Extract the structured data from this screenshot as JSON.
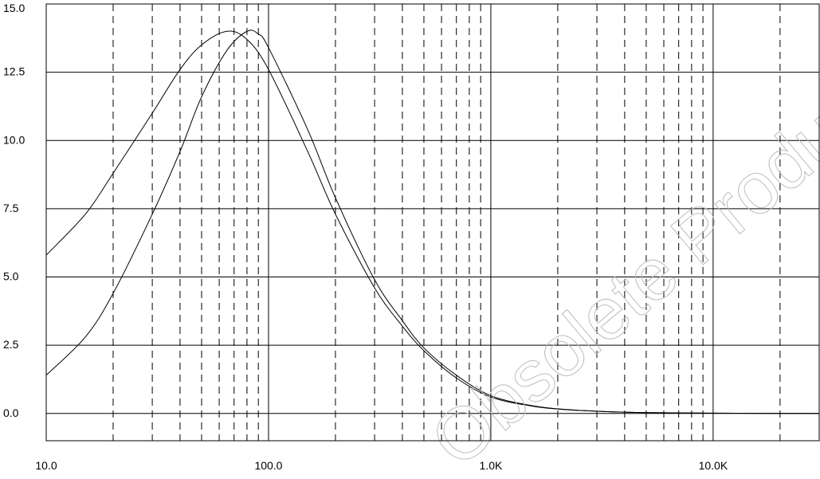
{
  "chart_data": {
    "type": "line",
    "title": "",
    "xlabel": "",
    "ylabel": "",
    "x_scale": "log",
    "xlim": [
      10,
      30000
    ],
    "ylim": [
      -1,
      15
    ],
    "x_tick_values": [
      10,
      100,
      1000,
      10000
    ],
    "x_tick_labels": [
      "10.0",
      "100.0",
      "1.0K",
      "10.0K"
    ],
    "y_tick_values": [
      0,
      2.5,
      5,
      7.5,
      10,
      12.5,
      15
    ],
    "y_tick_labels": [
      "0.0",
      "2.5",
      "5.0",
      "7.5",
      "10.0",
      "12.5",
      "15.0"
    ],
    "grid": {
      "horizontal": "solid",
      "vertical_decades": "solid",
      "vertical_minor": "dashed"
    },
    "series": [
      {
        "x": [
          10,
          15,
          20,
          30,
          40,
          50,
          65,
          80,
          100,
          150,
          200,
          300,
          400,
          500,
          700,
          1000,
          1500,
          2000,
          3000,
          5000,
          10000,
          30000
        ],
        "y": [
          5.8,
          7.3,
          8.8,
          11.0,
          12.6,
          13.5,
          14.0,
          13.7,
          12.6,
          9.6,
          7.3,
          4.6,
          3.2,
          2.3,
          1.3,
          0.6,
          0.28,
          0.16,
          0.08,
          0.03,
          0.01,
          0.0
        ]
      },
      {
        "x": [
          10,
          15,
          20,
          30,
          40,
          50,
          65,
          80,
          90,
          100,
          150,
          200,
          300,
          400,
          500,
          700,
          1000,
          1500,
          2000,
          3000,
          5000,
          10000,
          30000
        ],
        "y": [
          1.4,
          2.8,
          4.4,
          7.3,
          9.6,
          11.6,
          13.3,
          14.0,
          13.9,
          13.4,
          10.4,
          7.9,
          4.9,
          3.4,
          2.4,
          1.4,
          0.65,
          0.3,
          0.17,
          0.08,
          0.03,
          0.01,
          0.0
        ]
      }
    ]
  },
  "watermark": {
    "text": "Obsolete Product(s)"
  }
}
